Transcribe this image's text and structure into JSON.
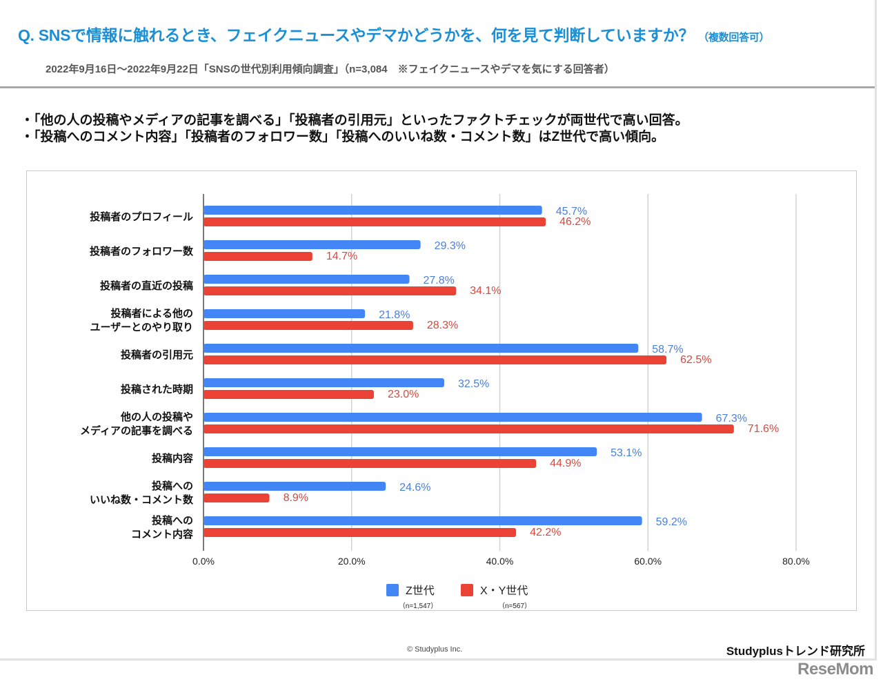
{
  "header": {
    "question": "Q. SNSで情報に触れるとき、フェイクニュースやデマかどうかを、何を見て判断していますか？",
    "question_note": "（複数回答可）",
    "subtitle": "2022年9月16日～2022年9月22日「SNSの世代別利用傾向調査」（n=3,084　※フェイクニュースやデマを気にする回答者）"
  },
  "summary": {
    "bullets": [
      "・「他の人の投稿やメディアの記事を調べる」「投稿者の引用元」といったファクトチェックが両世代で高い回答。",
      "・「投稿へのコメント内容」「投稿者のフォロワー数」「投稿へのいいね数・コメント数」はZ世代で高い傾向。"
    ]
  },
  "colors": {
    "z_bar": "#4285F4",
    "xy_bar": "#EA4335",
    "z_label": "#4A7FD9",
    "xy_label": "#D9473C"
  },
  "chart_data": {
    "type": "bar",
    "orientation": "horizontal",
    "title": "",
    "xlabel": "",
    "ylabel": "",
    "xlim": [
      0,
      80
    ],
    "x_ticks": [
      "0.0%",
      "20.0%",
      "40.0%",
      "60.0%",
      "80.0%"
    ],
    "x_tick_values": [
      0,
      20,
      40,
      60,
      80
    ],
    "grid": true,
    "legend_position": "bottom-center",
    "categories": [
      [
        "投稿者のプロフィール"
      ],
      [
        "投稿者のフォロワー数"
      ],
      [
        "投稿者の直近の投稿"
      ],
      [
        "投稿者による他の",
        "ユーザーとのやり取り"
      ],
      [
        "投稿者の引用元"
      ],
      [
        "投稿された時期"
      ],
      [
        "他の人の投稿や",
        "メディアの記事を調べる"
      ],
      [
        "投稿内容"
      ],
      [
        "投稿への",
        "いいね数・コメント数"
      ],
      [
        "投稿への",
        "コメント内容"
      ]
    ],
    "series": [
      {
        "name": "Z世代",
        "n_label": "（n=1,547）",
        "values": [
          45.7,
          29.3,
          27.8,
          21.8,
          58.7,
          32.5,
          67.3,
          53.1,
          24.6,
          59.2
        ],
        "labels": [
          "45.7%",
          "29.3%",
          "27.8%",
          "21.8%",
          "58.7%",
          "32.5%",
          "67.3%",
          "53.1%",
          "24.6%",
          "59.2%"
        ]
      },
      {
        "name": "X・Y世代",
        "n_label": "（n=567）",
        "values": [
          46.2,
          14.7,
          34.1,
          28.3,
          62.5,
          23.0,
          71.6,
          44.9,
          8.9,
          42.2
        ],
        "labels": [
          "46.2%",
          "14.7%",
          "34.1%",
          "28.3%",
          "62.5%",
          "23.0%",
          "71.6%",
          "44.9%",
          "8.9%",
          "42.2%"
        ]
      }
    ]
  },
  "footer": {
    "copyright": "© Studyplus Inc.",
    "brand": "Studyplusトレンド研究所",
    "watermark": "ReseMom"
  }
}
